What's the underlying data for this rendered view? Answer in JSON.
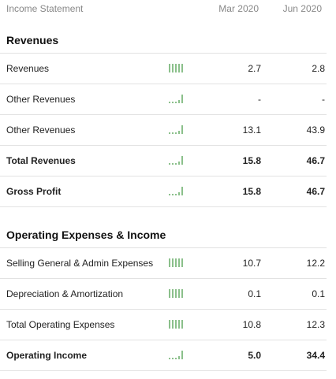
{
  "header": {
    "title": "Income Statement",
    "periods": [
      "Mar 2020",
      "Jun 2020"
    ]
  },
  "sections": [
    {
      "title": "Revenues",
      "rows": [
        {
          "label": "Revenues",
          "bold": false,
          "values": [
            "2.7",
            "2.8"
          ],
          "spark": [
            1,
            1,
            1,
            1,
            1
          ]
        },
        {
          "label": "Other Revenues",
          "bold": false,
          "values": [
            "-",
            "-"
          ],
          "spark": [
            0.15,
            0.15,
            0.15,
            0.4,
            1
          ]
        },
        {
          "label": "Other Revenues",
          "bold": false,
          "values": [
            "13.1",
            "43.9"
          ],
          "spark": [
            0.15,
            0.15,
            0.15,
            0.4,
            1
          ]
        },
        {
          "label": "Total Revenues",
          "bold": true,
          "values": [
            "15.8",
            "46.7"
          ],
          "spark": [
            0.15,
            0.15,
            0.15,
            0.4,
            1
          ]
        },
        {
          "label": "Gross Profit",
          "bold": true,
          "values": [
            "15.8",
            "46.7"
          ],
          "spark": [
            0.15,
            0.15,
            0.15,
            0.4,
            1
          ]
        }
      ]
    },
    {
      "title": "Operating Expenses & Income",
      "rows": [
        {
          "label": "Selling General & Admin Expenses",
          "bold": false,
          "values": [
            "10.7",
            "12.2"
          ],
          "spark": [
            1,
            1,
            1,
            1,
            1
          ]
        },
        {
          "label": "Depreciation & Amortization",
          "bold": false,
          "values": [
            "0.1",
            "0.1"
          ],
          "spark": [
            1,
            1,
            1,
            1,
            1
          ]
        },
        {
          "label": "Total Operating Expenses",
          "bold": false,
          "values": [
            "10.8",
            "12.3"
          ],
          "spark": [
            1,
            1,
            1,
            1,
            1
          ]
        },
        {
          "label": "Operating Income",
          "bold": true,
          "values": [
            "5.0",
            "34.4"
          ],
          "spark": [
            0.15,
            0.15,
            0.15,
            0.4,
            1
          ]
        }
      ]
    }
  ],
  "colors": {
    "spark": "#8bc08b",
    "separator": "#e2e2e2",
    "header_text": "#888888"
  }
}
